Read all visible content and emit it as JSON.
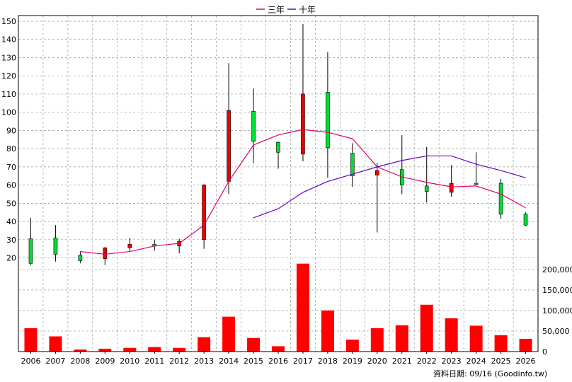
{
  "chart_data": {
    "type": "candlestick_with_volume",
    "legend": [
      {
        "label": "三年",
        "color": "#e0006e"
      },
      {
        "label": "十年",
        "color": "#6600cc"
      }
    ],
    "x": [
      "2006",
      "2007",
      "2008",
      "2009",
      "2010",
      "2011",
      "2012",
      "2013",
      "2014",
      "2015",
      "2016",
      "2017",
      "2018",
      "2019",
      "2020",
      "2021",
      "2022",
      "2023",
      "2024",
      "2025",
      "2026"
    ],
    "price_axis": {
      "ticks": [
        20,
        30,
        40,
        50,
        60,
        70,
        80,
        90,
        100,
        110,
        120,
        130,
        140,
        150
      ],
      "ylim": [
        14,
        150
      ]
    },
    "volume_axis": {
      "ticks": [
        "0",
        "50,000",
        "100,000",
        "150,000",
        "200,000"
      ],
      "ylim": [
        0,
        210000
      ]
    },
    "candles": [
      {
        "open": 17,
        "close": 30.5,
        "high": 42,
        "low": 16
      },
      {
        "open": 22,
        "close": 31,
        "high": 38,
        "low": 18
      },
      {
        "open": 18.5,
        "close": 21.5,
        "high": 23.5,
        "low": 17
      },
      {
        "open": 25.5,
        "close": 19.5,
        "high": 26,
        "low": 16
      },
      {
        "open": 27.5,
        "close": 25.5,
        "high": 31,
        "low": 23.5
      },
      {
        "open": 26.5,
        "close": 27.5,
        "high": 30,
        "low": 24
      },
      {
        "open": 29,
        "close": 26.5,
        "high": 30.5,
        "low": 22.5
      },
      {
        "open": 60,
        "close": 30,
        "high": 60.5,
        "low": 25
      },
      {
        "open": 101,
        "close": 62,
        "high": 127,
        "low": 55
      },
      {
        "open": 84,
        "close": 100.5,
        "high": 113,
        "low": 72
      },
      {
        "open": 78,
        "close": 83.5,
        "high": 84,
        "low": 69
      },
      {
        "open": 110,
        "close": 77,
        "high": 148.5,
        "low": 73
      },
      {
        "open": 80.5,
        "close": 111,
        "high": 133,
        "low": 64
      },
      {
        "open": 65,
        "close": 77.5,
        "high": 83,
        "low": 59
      },
      {
        "open": 68,
        "close": 65.5,
        "high": 72,
        "low": 34
      },
      {
        "open": 60,
        "close": 68.5,
        "high": 87.5,
        "low": 55
      },
      {
        "open": 56.5,
        "close": 59.5,
        "high": 81,
        "low": 50.5
      },
      {
        "open": 61,
        "close": 56,
        "high": 71,
        "low": 53.5
      },
      {
        "open": 61,
        "close": 61,
        "high": 78,
        "low": 60
      },
      {
        "open": 44,
        "close": 61,
        "high": 63.5,
        "low": 41.5
      },
      {
        "open": 38,
        "close": 44,
        "high": 45,
        "low": 37.5
      }
    ],
    "series": [
      {
        "name": "三年",
        "values": [
          null,
          null,
          23.5,
          22,
          23.5,
          26.5,
          28,
          38,
          62,
          82,
          87.5,
          90.5,
          89,
          85.5,
          70,
          64.5,
          61.5,
          59,
          59.5,
          55,
          47.5
        ]
      },
      {
        "name": "十年",
        "values": [
          null,
          null,
          null,
          null,
          null,
          null,
          null,
          null,
          null,
          42,
          47,
          56,
          62,
          66,
          70,
          73.5,
          76,
          76,
          71.5,
          68,
          64
        ]
      }
    ],
    "volume": [
      57000,
      37000,
      5000,
      7000,
      9000,
      11000,
      9000,
      35000,
      85000,
      33000,
      13000,
      214000,
      100000,
      29000,
      57000,
      64000,
      114000,
      81000,
      63000,
      40000,
      31000
    ],
    "grid": true,
    "footnote": "資料日期: 09/16  (Goodinfo.tw)"
  },
  "colors": {
    "up_fill": "#00dd33",
    "down_fill": "#ee0000",
    "volume_fill": "#ff0000",
    "grid": "#999999",
    "axis": "#000000"
  }
}
